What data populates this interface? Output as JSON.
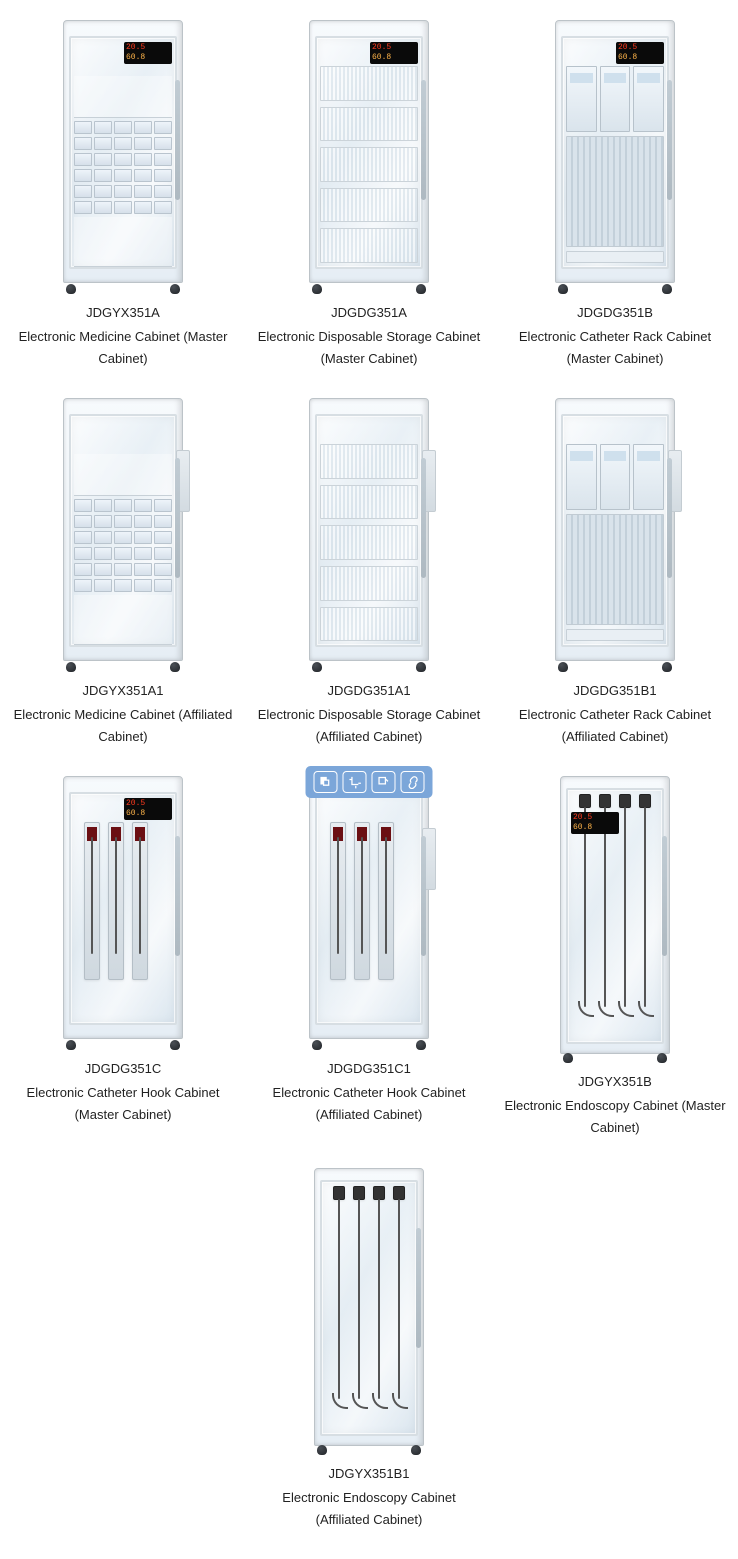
{
  "display": {
    "line1": "20.5",
    "line2": "60.8"
  },
  "toolbar_on_index": 7,
  "products": [
    {
      "code": "JDGYX351A",
      "name": "Electronic Medicine Cabinet (Master Cabinet)",
      "interior": "medicine",
      "display": true,
      "display_pos": "pos-inside-top-right",
      "sidepanel": false,
      "handle": "right",
      "tall": false
    },
    {
      "code": "JDGDG351A",
      "name": "Electronic Disposable Storage Cabinet (Master Cabinet)",
      "interior": "shelves",
      "display": true,
      "display_pos": "pos-inside-top-right",
      "sidepanel": false,
      "handle": "right",
      "tall": false
    },
    {
      "code": "JDGDG351B",
      "name": "Electronic Catheter Rack Cabinet (Master Cabinet)",
      "interior": "rack",
      "display": true,
      "display_pos": "pos-inside-top-right",
      "sidepanel": false,
      "handle": "right",
      "tall": false
    },
    {
      "code": "JDGYX351A1",
      "name": "Electronic Medicine Cabinet (Affiliated Cabinet)",
      "interior": "medicine",
      "display": false,
      "display_pos": "",
      "sidepanel": true,
      "handle": "right",
      "tall": false
    },
    {
      "code": "JDGDG351A1",
      "name": "Electronic Disposable Storage Cabinet (Affiliated Cabinet)",
      "interior": "shelves",
      "display": false,
      "display_pos": "",
      "sidepanel": true,
      "handle": "right",
      "tall": false
    },
    {
      "code": "JDGDG351B1",
      "name": "Electronic Catheter Rack Cabinet (Affiliated Cabinet)",
      "interior": "rack",
      "display": false,
      "display_pos": "",
      "sidepanel": true,
      "handle": "right",
      "tall": false
    },
    {
      "code": "JDGDG351C",
      "name": "Electronic Catheter Hook Cabinet (Master Cabinet)",
      "interior": "hook-bags",
      "display": true,
      "display_pos": "pos-inside-top-right",
      "sidepanel": false,
      "handle": "right",
      "tall": false
    },
    {
      "code": "JDGDG351C1",
      "name": "Electronic Catheter Hook Cabinet (Affiliated Cabinet)",
      "interior": "hook-bags",
      "display": false,
      "display_pos": "",
      "sidepanel": true,
      "handle": "right",
      "tall": false
    },
    {
      "code": "JDGYX351B",
      "name": "Electronic Endoscopy Cabinet (Master Cabinet)",
      "interior": "endoscopy",
      "display": true,
      "display_pos": "pos-outside-left",
      "sidepanel": false,
      "handle": "right",
      "tall": true
    },
    {
      "code": "JDGYX351B1",
      "name": "Electronic Endoscopy Cabinet (Affiliated Cabinet)",
      "interior": "endoscopy",
      "display": false,
      "display_pos": "",
      "sidepanel": false,
      "handle": "right",
      "tall": true
    }
  ]
}
